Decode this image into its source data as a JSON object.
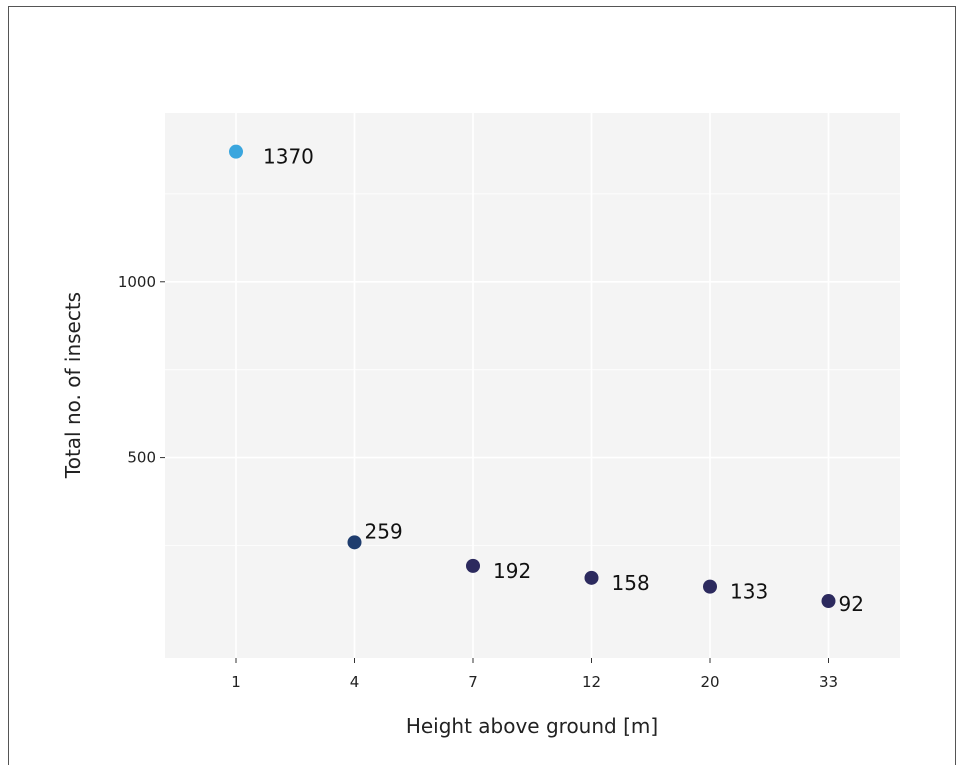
{
  "chart_data": {
    "type": "scatter",
    "title": "",
    "xlabel": "Height above ground [m]",
    "ylabel": "Total no. of insects",
    "x": [
      "1",
      "4",
      "7",
      "12",
      "20",
      "33"
    ],
    "y": [
      1370,
      259,
      192,
      158,
      133,
      92
    ],
    "data_labels": [
      "1370",
      "259",
      "192",
      "158",
      "133",
      "92"
    ],
    "point_colors": [
      "#3aa6de",
      "#1f3d6e",
      "#2c2a5e",
      "#2c2a5e",
      "#2c2a5e",
      "#2c2a5e"
    ],
    "ylim": [
      -70,
      1480
    ],
    "yticks": [
      500,
      1000
    ],
    "ytick_labels": [
      "500",
      "1000"
    ],
    "grid": true,
    "background": "#f4f4f4",
    "grid_color": "#ffffff"
  }
}
